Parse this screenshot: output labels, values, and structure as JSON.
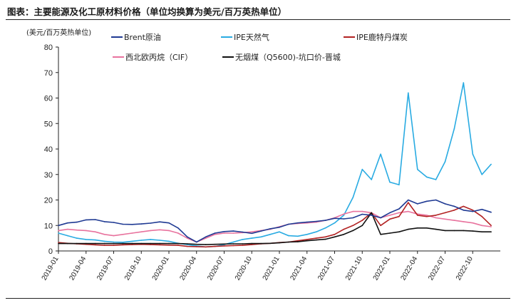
{
  "header": {
    "title": "图表：主要能源及化工原材料价格（单位均换算为美元/百万英热单位）"
  },
  "chart_data": {
    "type": "line",
    "title": "图表：主要能源及化工原材料价格（单位均换算为美元/百万英热单位）",
    "ylabel": "(美元/百万英热单位)",
    "xlabel": "",
    "ylim": [
      0,
      80
    ],
    "yticks": [
      0,
      10,
      20,
      30,
      40,
      50,
      60,
      70,
      80
    ],
    "xlim": [
      "2019-01",
      "2022-12"
    ],
    "xticks": [
      "2019-01",
      "2019-04",
      "2019-07",
      "2019-10",
      "2020-01",
      "2020-04",
      "2020-07",
      "2020-10",
      "2021-01",
      "2021-04",
      "2021-07",
      "2021-10",
      "2022-01",
      "2022-04",
      "2022-07",
      "2022-10"
    ],
    "grid": false,
    "legend_position": "top",
    "series": [
      {
        "name": "Brent原油",
        "color": "#1f3a93",
        "values": [
          [
            0,
            10.0
          ],
          [
            1,
            11.0
          ],
          [
            2,
            11.3
          ],
          [
            3,
            12.2
          ],
          [
            4,
            12.3
          ],
          [
            5,
            11.5
          ],
          [
            6,
            11.2
          ],
          [
            7,
            10.5
          ],
          [
            8,
            10.4
          ],
          [
            9,
            10.6
          ],
          [
            10,
            10.9
          ],
          [
            11,
            11.4
          ],
          [
            12,
            11.0
          ],
          [
            13,
            9.0
          ],
          [
            14,
            5.5
          ],
          [
            15,
            3.5
          ],
          [
            16,
            5.5
          ],
          [
            17,
            7.0
          ],
          [
            18,
            7.6
          ],
          [
            19,
            7.8
          ],
          [
            20,
            7.4
          ],
          [
            21,
            6.9
          ],
          [
            22,
            7.8
          ],
          [
            23,
            8.7
          ],
          [
            24,
            9.3
          ],
          [
            25,
            10.5
          ],
          [
            26,
            11.0
          ],
          [
            27,
            11.3
          ],
          [
            28,
            11.6
          ],
          [
            29,
            12.0
          ],
          [
            30,
            12.8
          ],
          [
            31,
            12.6
          ],
          [
            32,
            13.0
          ],
          [
            33,
            14.4
          ],
          [
            34,
            14.0
          ],
          [
            35,
            13.0
          ],
          [
            36,
            15.0
          ],
          [
            37,
            16.5
          ],
          [
            38,
            20.0
          ],
          [
            39,
            18.5
          ],
          [
            40,
            19.5
          ],
          [
            41,
            20.0
          ],
          [
            42,
            18.5
          ],
          [
            43,
            17.5
          ],
          [
            44,
            16.0
          ],
          [
            45,
            15.5
          ],
          [
            46,
            16.3
          ],
          [
            47,
            15.2
          ]
        ]
      },
      {
        "name": "IPE天然气",
        "color": "#29abe2",
        "values": [
          [
            0,
            7.0
          ],
          [
            1,
            6.0
          ],
          [
            2,
            5.0
          ],
          [
            3,
            4.5
          ],
          [
            4,
            4.3
          ],
          [
            5,
            3.8
          ],
          [
            6,
            3.5
          ],
          [
            7,
            3.4
          ],
          [
            8,
            3.8
          ],
          [
            9,
            4.2
          ],
          [
            10,
            4.5
          ],
          [
            11,
            4.2
          ],
          [
            12,
            3.8
          ],
          [
            13,
            3.0
          ],
          [
            14,
            2.5
          ],
          [
            15,
            2.0
          ],
          [
            16,
            1.6
          ],
          [
            17,
            1.8
          ],
          [
            18,
            2.5
          ],
          [
            19,
            3.5
          ],
          [
            20,
            4.5
          ],
          [
            21,
            5.0
          ],
          [
            22,
            5.5
          ],
          [
            23,
            6.5
          ],
          [
            24,
            7.5
          ],
          [
            25,
            6.0
          ],
          [
            26,
            5.8
          ],
          [
            27,
            6.5
          ],
          [
            28,
            7.5
          ],
          [
            29,
            9.0
          ],
          [
            30,
            11.0
          ],
          [
            31,
            14.0
          ],
          [
            32,
            21.0
          ],
          [
            33,
            32.0
          ],
          [
            34,
            28.0
          ],
          [
            35,
            38.0
          ],
          [
            36,
            27.0
          ],
          [
            37,
            26.0
          ],
          [
            38,
            62.0
          ],
          [
            39,
            32.0
          ],
          [
            40,
            29.0
          ],
          [
            41,
            28.0
          ],
          [
            42,
            35.0
          ],
          [
            43,
            48.0
          ],
          [
            44,
            66.0
          ],
          [
            45,
            38.0
          ],
          [
            46,
            30.0
          ],
          [
            47,
            34.0
          ]
        ]
      },
      {
        "name": "IPE鹿特丹煤炭",
        "color": "#b22222",
        "values": [
          [
            0,
            3.3
          ],
          [
            1,
            3.0
          ],
          [
            2,
            2.8
          ],
          [
            3,
            2.6
          ],
          [
            4,
            2.4
          ],
          [
            5,
            2.2
          ],
          [
            6,
            2.2
          ],
          [
            7,
            2.4
          ],
          [
            8,
            2.5
          ],
          [
            9,
            2.6
          ],
          [
            10,
            2.5
          ],
          [
            11,
            2.4
          ],
          [
            12,
            2.3
          ],
          [
            13,
            2.2
          ],
          [
            14,
            1.8
          ],
          [
            15,
            1.7
          ],
          [
            16,
            1.6
          ],
          [
            17,
            1.8
          ],
          [
            18,
            2.0
          ],
          [
            19,
            2.1
          ],
          [
            20,
            2.2
          ],
          [
            21,
            2.5
          ],
          [
            22,
            2.8
          ],
          [
            23,
            3.0
          ],
          [
            24,
            3.3
          ],
          [
            25,
            3.5
          ],
          [
            26,
            4.0
          ],
          [
            27,
            4.5
          ],
          [
            28,
            5.0
          ],
          [
            29,
            5.5
          ],
          [
            30,
            6.5
          ],
          [
            31,
            8.5
          ],
          [
            32,
            10.0
          ],
          [
            33,
            12.0
          ],
          [
            34,
            15.0
          ],
          [
            35,
            10.0
          ],
          [
            36,
            12.5
          ],
          [
            37,
            13.5
          ],
          [
            38,
            19.0
          ],
          [
            39,
            14.0
          ],
          [
            40,
            13.5
          ],
          [
            41,
            14.0
          ],
          [
            42,
            15.0
          ],
          [
            43,
            16.0
          ],
          [
            44,
            17.5
          ],
          [
            45,
            16.0
          ],
          [
            46,
            13.5
          ],
          [
            47,
            10.0
          ]
        ]
      },
      {
        "name": "西北欧丙烷（CIF）",
        "color": "#e8739e",
        "values": [
          [
            0,
            8.0
          ],
          [
            1,
            8.5
          ],
          [
            2,
            8.2
          ],
          [
            3,
            8.0
          ],
          [
            4,
            7.5
          ],
          [
            5,
            6.5
          ],
          [
            6,
            6.0
          ],
          [
            7,
            6.5
          ],
          [
            8,
            7.0
          ],
          [
            9,
            7.5
          ],
          [
            10,
            8.0
          ],
          [
            11,
            8.3
          ],
          [
            12,
            8.0
          ],
          [
            13,
            7.0
          ],
          [
            14,
            5.0
          ],
          [
            15,
            3.5
          ],
          [
            16,
            5.0
          ],
          [
            17,
            6.5
          ],
          [
            18,
            7.0
          ],
          [
            19,
            7.0
          ],
          [
            20,
            7.2
          ],
          [
            21,
            7.5
          ],
          [
            22,
            8.0
          ],
          [
            23,
            8.5
          ],
          [
            24,
            9.5
          ],
          [
            25,
            10.5
          ],
          [
            26,
            10.8
          ],
          [
            27,
            11.0
          ],
          [
            28,
            11.3
          ],
          [
            29,
            12.0
          ],
          [
            30,
            13.0
          ],
          [
            31,
            14.5
          ],
          [
            32,
            15.5
          ],
          [
            33,
            15.5
          ],
          [
            34,
            15.0
          ],
          [
            35,
            13.0
          ],
          [
            36,
            14.0
          ],
          [
            37,
            15.0
          ],
          [
            38,
            15.5
          ],
          [
            39,
            14.5
          ],
          [
            40,
            14.0
          ],
          [
            41,
            13.0
          ],
          [
            42,
            12.5
          ],
          [
            43,
            12.0
          ],
          [
            44,
            11.5
          ],
          [
            45,
            11.0
          ],
          [
            46,
            10.0
          ],
          [
            47,
            9.5
          ]
        ]
      },
      {
        "name": "无烟煤（Q5600)-坑口价-晋城",
        "color": "#111111",
        "values": [
          [
            0,
            2.9
          ],
          [
            1,
            2.9
          ],
          [
            2,
            2.9
          ],
          [
            3,
            2.9
          ],
          [
            4,
            2.9
          ],
          [
            5,
            2.9
          ],
          [
            6,
            2.9
          ],
          [
            7,
            2.9
          ],
          [
            8,
            2.9
          ],
          [
            9,
            2.9
          ],
          [
            10,
            2.9
          ],
          [
            11,
            2.9
          ],
          [
            12,
            2.9
          ],
          [
            13,
            2.9
          ],
          [
            14,
            2.8
          ],
          [
            15,
            2.6
          ],
          [
            16,
            2.5
          ],
          [
            17,
            2.6
          ],
          [
            18,
            2.7
          ],
          [
            19,
            2.8
          ],
          [
            20,
            2.8
          ],
          [
            21,
            2.9
          ],
          [
            22,
            2.9
          ],
          [
            23,
            3.0
          ],
          [
            24,
            3.2
          ],
          [
            25,
            3.5
          ],
          [
            26,
            3.6
          ],
          [
            27,
            4.0
          ],
          [
            28,
            4.3
          ],
          [
            29,
            4.6
          ],
          [
            30,
            5.5
          ],
          [
            31,
            6.5
          ],
          [
            32,
            8.0
          ],
          [
            33,
            10.0
          ],
          [
            34,
            15.0
          ],
          [
            35,
            6.5
          ],
          [
            36,
            7.0
          ],
          [
            37,
            7.5
          ],
          [
            38,
            8.5
          ],
          [
            39,
            9.0
          ],
          [
            40,
            9.0
          ],
          [
            41,
            8.5
          ],
          [
            42,
            8.0
          ],
          [
            43,
            8.0
          ],
          [
            44,
            8.0
          ],
          [
            45,
            7.8
          ],
          [
            46,
            7.5
          ],
          [
            47,
            7.5
          ]
        ]
      }
    ]
  }
}
